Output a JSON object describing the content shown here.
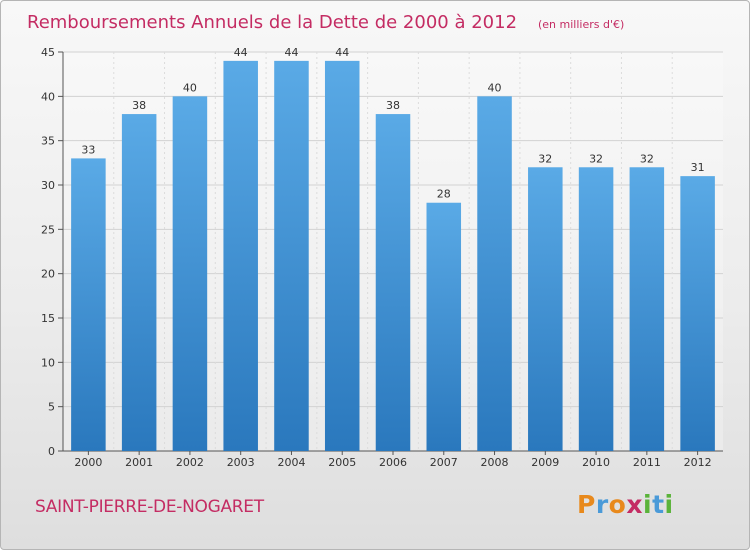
{
  "chart_data": {
    "type": "bar",
    "title": "Remboursements Annuels de la Dette de 2000 à 2012",
    "subtitle": "(en milliers d'€)",
    "categories": [
      "2000",
      "2001",
      "2002",
      "2003",
      "2004",
      "2005",
      "2006",
      "2007",
      "2008",
      "2009",
      "2010",
      "2011",
      "2012"
    ],
    "values": [
      33,
      38,
      40,
      44,
      44,
      44,
      38,
      28,
      40,
      32,
      32,
      32,
      31
    ],
    "data_labels": [
      "33",
      "38",
      "40",
      "44",
      "44",
      "44",
      "38",
      "28",
      "40",
      "32",
      "32",
      "32",
      "31"
    ],
    "y_ticks": [
      "0",
      "5",
      "10",
      "15",
      "20",
      "25",
      "30",
      "35",
      "40",
      "45"
    ],
    "ylim": [
      0,
      45
    ],
    "grid": true,
    "bar_color_top": "#5aaae6",
    "bar_color_bottom": "#2a78bd"
  },
  "footer": {
    "commune": "SAINT-PIERRE-DE-NOGARET",
    "brand_letters": [
      {
        "ch": "P",
        "color": "#e8891c"
      },
      {
        "ch": "r",
        "color": "#4a9ad8"
      },
      {
        "ch": "o",
        "color": "#e8891c"
      },
      {
        "ch": "x",
        "color": "#c42c63"
      },
      {
        "ch": "i",
        "color": "#5ab33a"
      },
      {
        "ch": "t",
        "color": "#4a9ad8"
      },
      {
        "ch": "i",
        "color": "#5ab33a"
      }
    ]
  }
}
